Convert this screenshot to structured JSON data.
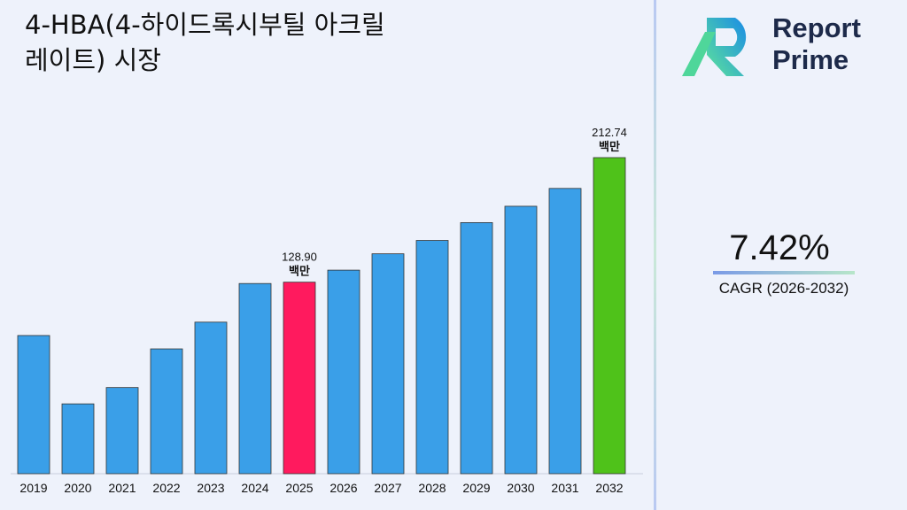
{
  "title": "4-HBA(4-하이드록시부틸 아크릴레이트) 시장",
  "brand": {
    "line1": "Report",
    "line2": "Prime"
  },
  "cagr": {
    "value": "7.42%",
    "label": "CAGR (2026-2032)"
  },
  "chart_data": {
    "type": "bar",
    "title": "4-HBA(4-하이드록시부틸 아크릴레이트) 시장",
    "categories": [
      "2019",
      "2020",
      "2021",
      "2022",
      "2023",
      "2024",
      "2025",
      "2026",
      "2027",
      "2028",
      "2029",
      "2030",
      "2031",
      "2032"
    ],
    "values": [
      93,
      47,
      58,
      84,
      102,
      128,
      128.9,
      137,
      148,
      157,
      169,
      180,
      192,
      212.74
    ],
    "unit": "백만",
    "data_labels": [
      {
        "index": 6,
        "value": "128.90",
        "unit": "백만"
      },
      {
        "index": 13,
        "value": "212.74",
        "unit": "백만"
      }
    ],
    "colors": {
      "default": "#3a9fe8",
      "highlight_2025": "#ff1a5e",
      "highlight_2032": "#4fc21a"
    },
    "ylim": [
      0,
      212.74
    ],
    "grid": false
  }
}
